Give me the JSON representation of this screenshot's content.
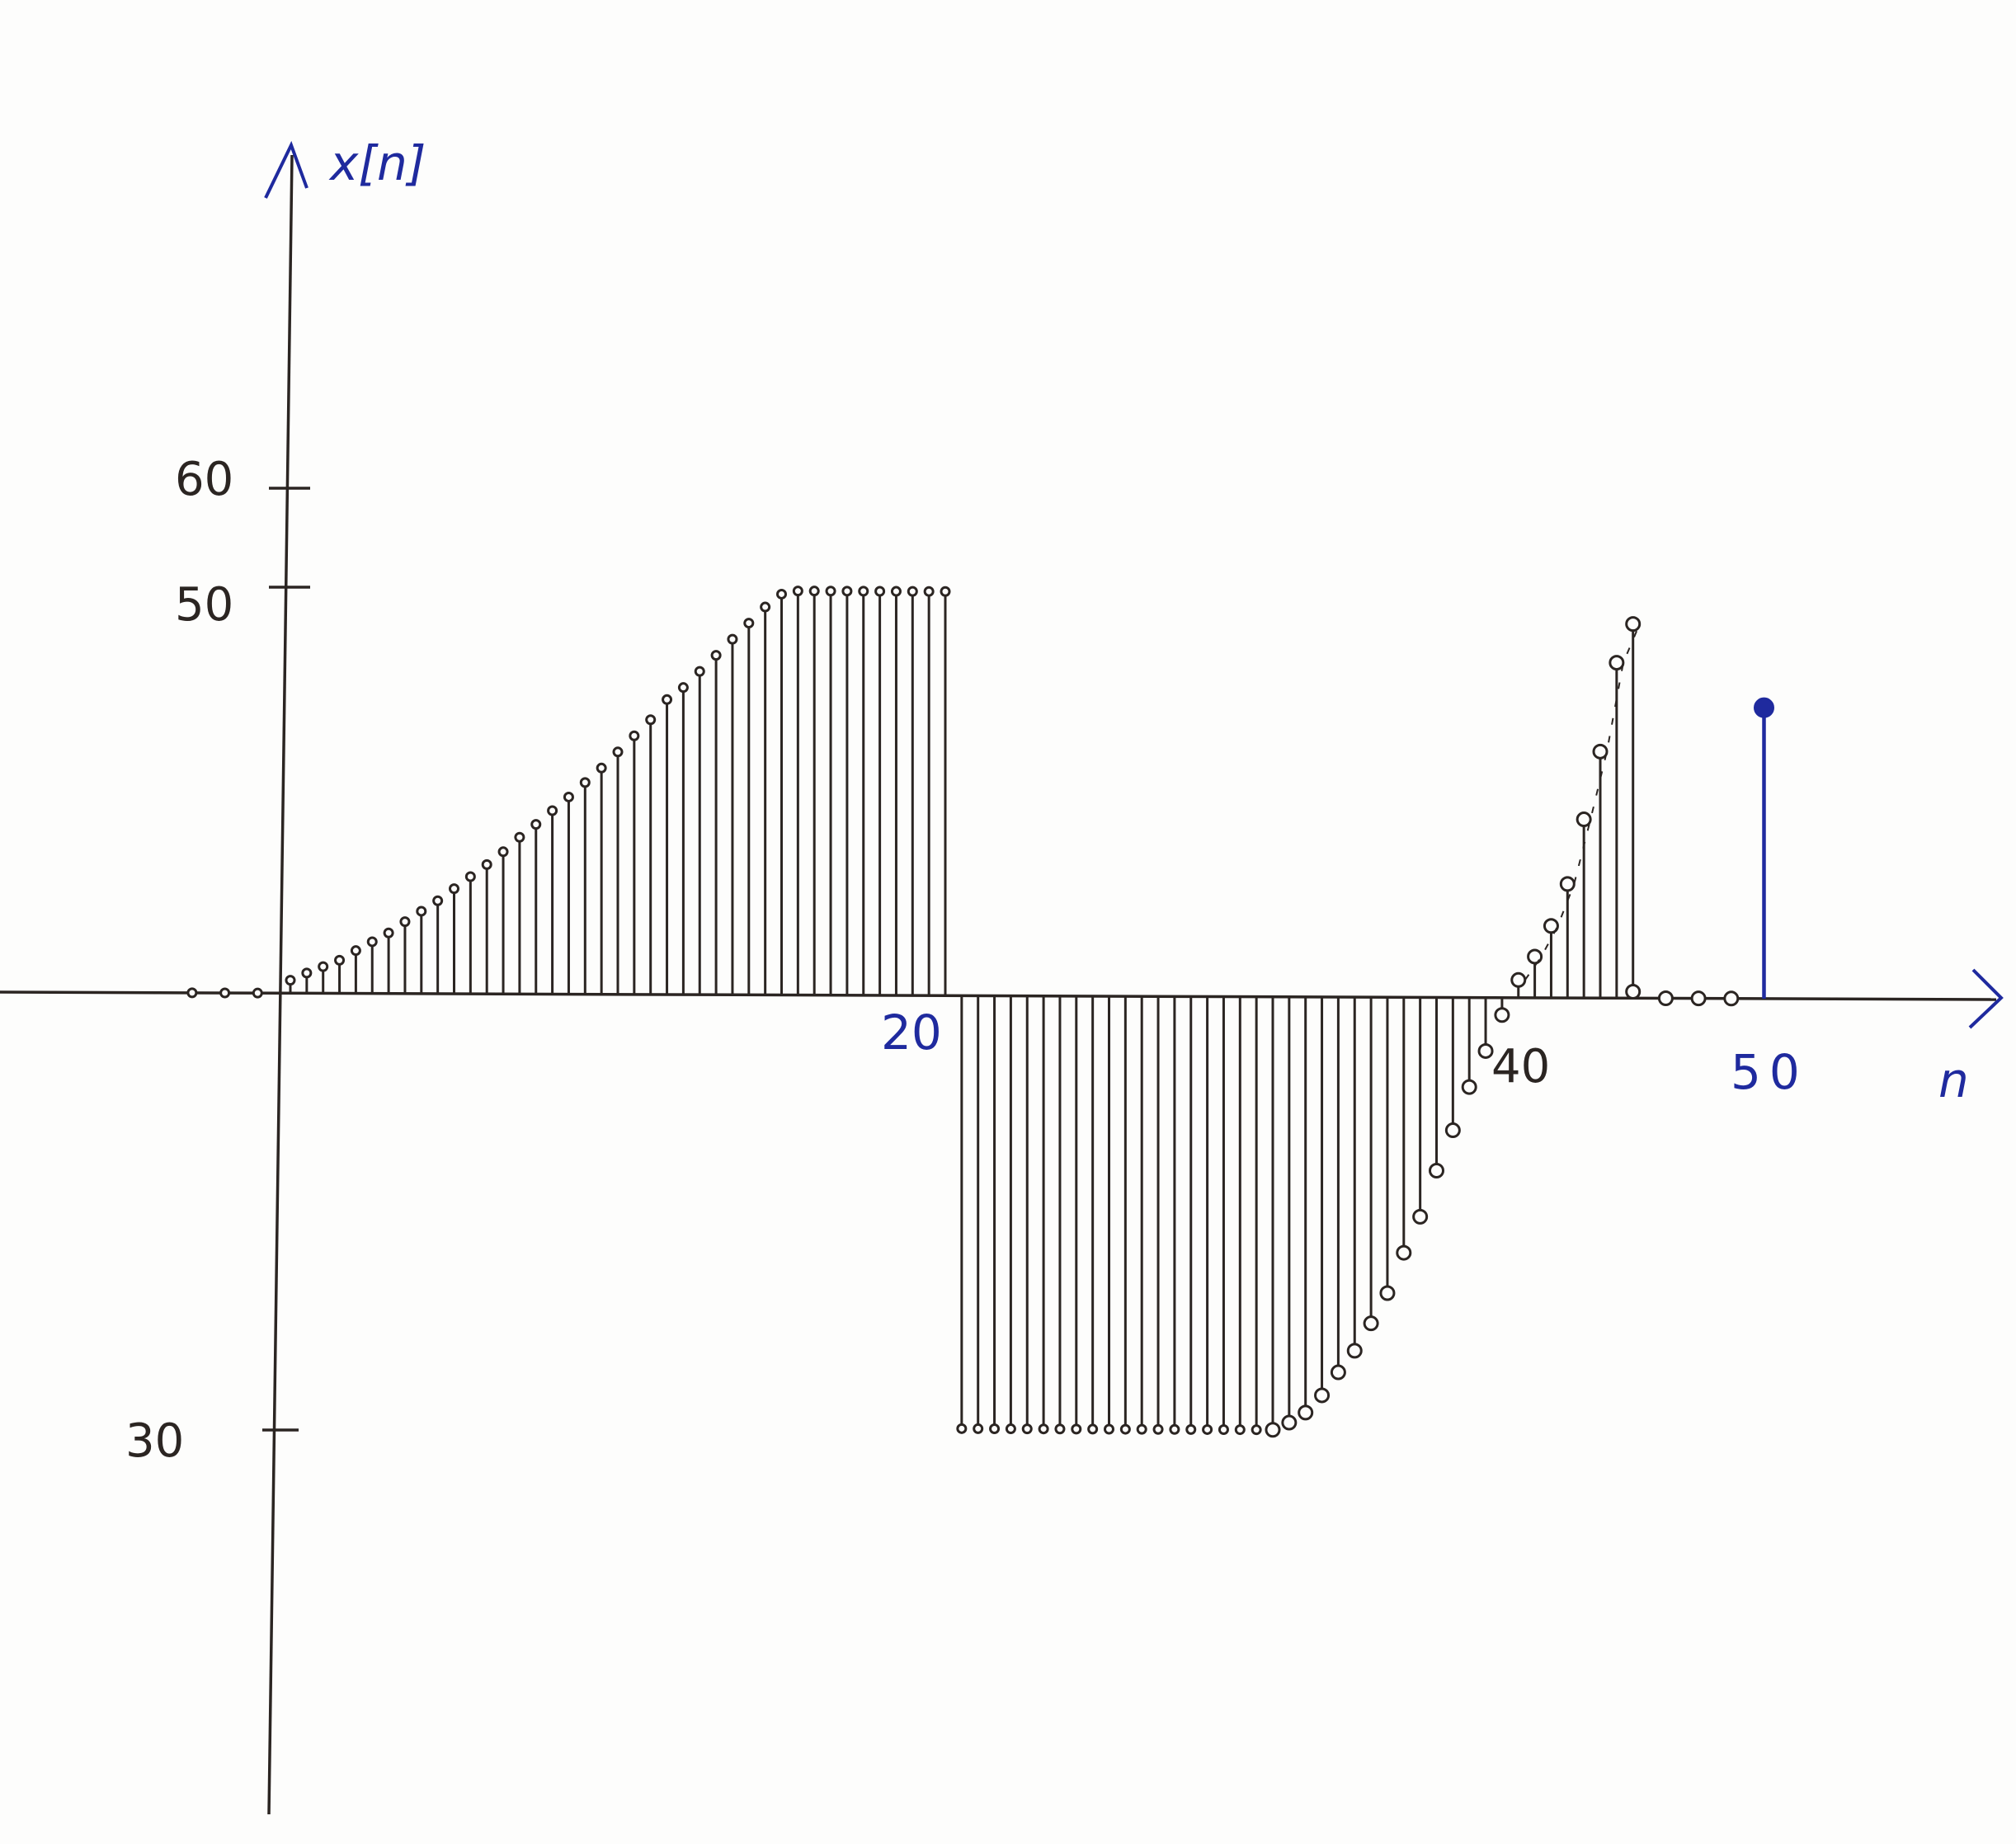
{
  "chart_data": {
    "type": "stem",
    "title": "",
    "xlabel": "n",
    "ylabel": "x[n]",
    "y_ticks": [
      "60",
      "50",
      "30"
    ],
    "x_ticks": [
      "20",
      "40",
      "50"
    ],
    "colors": {
      "ink": "#2b2522",
      "blue": "#1f2a9e",
      "paper": "#fdfdfc"
    },
    "ellipsis_left": "zero samples continue for n < 0",
    "ellipsis_right": "zero samples after the last nonzero sample",
    "series": [
      {
        "name": "",
        "color": "#2b2522",
        "points": [
          {
            "n": 0.0,
            "v": 1.6
          },
          {
            "n": 0.5,
            "v": 2.5
          },
          {
            "n": 1.0,
            "v": 3.3
          },
          {
            "n": 1.5,
            "v": 4.1
          },
          {
            "n": 2.0,
            "v": 5.3
          },
          {
            "n": 2.5,
            "v": 6.4
          },
          {
            "n": 3.0,
            "v": 7.5
          },
          {
            "n": 3.5,
            "v": 8.9
          },
          {
            "n": 4.0,
            "v": 10.2
          },
          {
            "n": 4.5,
            "v": 11.5
          },
          {
            "n": 5.0,
            "v": 13.0
          },
          {
            "n": 5.5,
            "v": 14.5
          },
          {
            "n": 6.0,
            "v": 16.0
          },
          {
            "n": 6.5,
            "v": 17.6
          },
          {
            "n": 7.0,
            "v": 19.4
          },
          {
            "n": 7.5,
            "v": 21.0
          },
          {
            "n": 8.0,
            "v": 22.7
          },
          {
            "n": 8.5,
            "v": 24.4
          },
          {
            "n": 9.0,
            "v": 26.2
          },
          {
            "n": 9.5,
            "v": 28.0
          },
          {
            "n": 10.0,
            "v": 30.0
          },
          {
            "n": 10.5,
            "v": 32.0
          },
          {
            "n": 11.0,
            "v": 34.0
          },
          {
            "n": 11.5,
            "v": 36.5
          },
          {
            "n": 12.0,
            "v": 38.0
          },
          {
            "n": 12.5,
            "v": 40.0
          },
          {
            "n": 13.0,
            "v": 42.0
          },
          {
            "n": 13.5,
            "v": 44.0
          },
          {
            "n": 14.0,
            "v": 46.0
          },
          {
            "n": 14.5,
            "v": 48.0
          },
          {
            "n": 15.0,
            "v": 49.6
          },
          {
            "n": 15.5,
            "v": 50.0
          },
          {
            "n": 16.0,
            "v": 50.0
          },
          {
            "n": 16.5,
            "v": 50.0
          },
          {
            "n": 17.0,
            "v": 50.0
          },
          {
            "n": 17.5,
            "v": 50.0
          },
          {
            "n": 18.0,
            "v": 50.0
          },
          {
            "n": 18.5,
            "v": 50.0
          },
          {
            "n": 19.0,
            "v": 50.0
          },
          {
            "n": 19.5,
            "v": 50.0
          },
          {
            "n": 20.0,
            "v": 50.0
          },
          {
            "n": 20.5,
            "v": -30.0
          },
          {
            "n": 21.0,
            "v": -30.0
          },
          {
            "n": 21.5,
            "v": -30.0
          },
          {
            "n": 22.0,
            "v": -30.0
          },
          {
            "n": 22.5,
            "v": -30.0
          },
          {
            "n": 23.0,
            "v": -30.0
          },
          {
            "n": 23.5,
            "v": -30.0
          },
          {
            "n": 24.0,
            "v": -30.0
          },
          {
            "n": 24.5,
            "v": -30.0
          },
          {
            "n": 25.0,
            "v": -30.0
          },
          {
            "n": 25.5,
            "v": -30.0
          },
          {
            "n": 26.0,
            "v": -30.0
          },
          {
            "n": 26.5,
            "v": -30.0
          },
          {
            "n": 27.0,
            "v": -30.0
          },
          {
            "n": 27.5,
            "v": -30.0
          },
          {
            "n": 28.0,
            "v": -30.0
          },
          {
            "n": 28.5,
            "v": -30.0
          },
          {
            "n": 29.0,
            "v": -30.0
          },
          {
            "n": 29.5,
            "v": -30.0
          },
          {
            "n": 30.0,
            "v": -30.0
          },
          {
            "n": 30.5,
            "v": -29.5
          },
          {
            "n": 31.0,
            "v": -28.8
          },
          {
            "n": 31.5,
            "v": -27.6
          },
          {
            "n": 32.0,
            "v": -26.0
          },
          {
            "n": 32.5,
            "v": -24.5
          },
          {
            "n": 33.0,
            "v": -22.6
          },
          {
            "n": 33.5,
            "v": -20.5
          },
          {
            "n": 34.0,
            "v": -17.7
          },
          {
            "n": 34.5,
            "v": -15.2
          },
          {
            "n": 35.0,
            "v": -12.0
          },
          {
            "n": 35.5,
            "v": -9.2
          },
          {
            "n": 36.0,
            "v": -6.2
          },
          {
            "n": 36.5,
            "v": -3.7
          },
          {
            "n": 37.0,
            "v": -1.2
          },
          {
            "n": 37.5,
            "v": 2.2
          },
          {
            "n": 38.0,
            "v": 5.1
          },
          {
            "n": 38.5,
            "v": 8.9
          },
          {
            "n": 39.0,
            "v": 14.1
          },
          {
            "n": 39.5,
            "v": 22.1
          },
          {
            "n": 40.0,
            "v": 30.5
          },
          {
            "n": 40.5,
            "v": 41.5
          },
          {
            "n": 41.0,
            "v": 46.3
          },
          {
            "n": 41.0,
            "v": 0.8
          },
          {
            "n": 42.0,
            "v": 0.0
          },
          {
            "n": 43.0,
            "v": 0.0
          },
          {
            "n": 44.0,
            "v": 0.0
          }
        ]
      },
      {
        "name": "",
        "color": "#1f2a9e",
        "points": [
          {
            "n": 45.0,
            "v": 36.0
          }
        ]
      },
      {
        "name": "",
        "color": "#2b2522",
        "points": [
          {
            "n": -3.0,
            "v": 0.0
          },
          {
            "n": -2.0,
            "v": 0.0
          },
          {
            "n": -1.0,
            "v": 0.0
          }
        ]
      }
    ]
  }
}
